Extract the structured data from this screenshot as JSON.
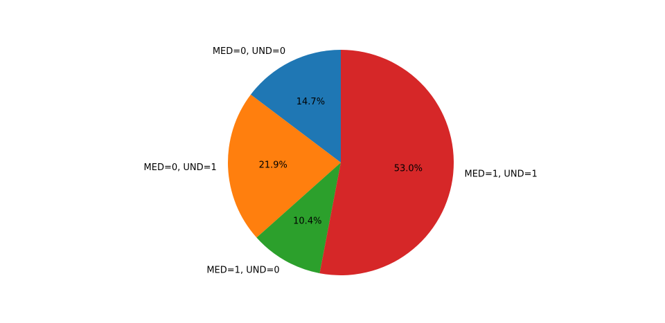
{
  "chart_data": {
    "type": "pie",
    "labels": [
      "MED=0, UND=0",
      "MED=0, UND=1",
      "MED=1, UND=0",
      "MED=1, UND=1"
    ],
    "values": [
      14.7,
      21.9,
      10.4,
      53.0
    ],
    "percent_labels": [
      "14.7%",
      "21.9%",
      "10.4%",
      "53.0%"
    ],
    "colors": [
      "#1f77b4",
      "#ff7f0e",
      "#2ca02c",
      "#d62728"
    ],
    "start_angle_deg": 90,
    "direction": "counterclockwise"
  }
}
